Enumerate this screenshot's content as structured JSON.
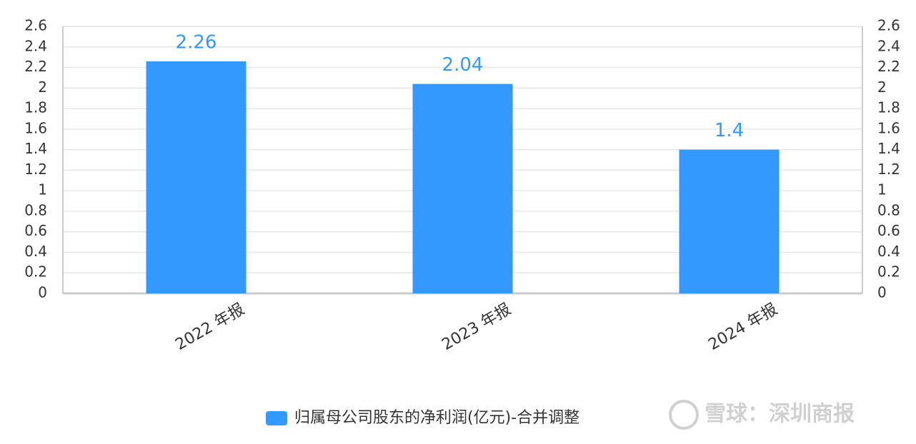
{
  "chart_data": {
    "type": "bar",
    "categories": [
      "2022 年报",
      "2023 年报",
      "2024 年报"
    ],
    "series": [
      {
        "name": "归属母公司股东的净利润(亿元)-合并调整",
        "color": "#3399ff",
        "values": [
          2.26,
          2.04,
          1.4
        ]
      }
    ],
    "ylim": [
      0,
      2.6
    ],
    "yticks": [
      0,
      0.2,
      0.4,
      0.6,
      0.8,
      1,
      1.2,
      1.4,
      1.6,
      1.8,
      2,
      2.2,
      2.4,
      2.6
    ],
    "y2lim": [
      0,
      2.6
    ],
    "y2ticks": [
      0,
      0.2,
      0.4,
      0.6,
      0.8,
      1,
      1.2,
      1.4,
      1.6,
      1.8,
      2,
      2.2,
      2.4,
      2.6
    ],
    "grid": true,
    "legend": "bottom",
    "watermark": "雪球：深圳商报"
  }
}
